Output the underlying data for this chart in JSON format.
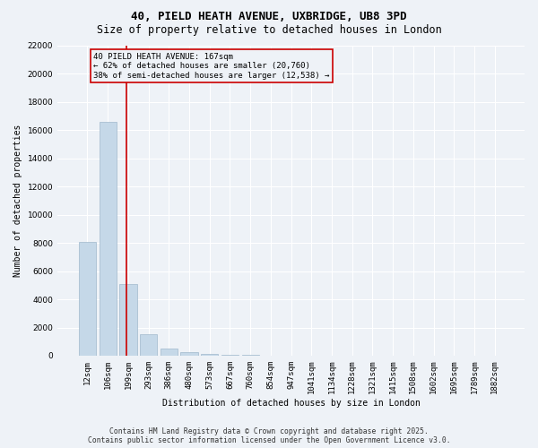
{
  "title_line1": "40, PIELD HEATH AVENUE, UXBRIDGE, UB8 3PD",
  "title_line2": "Size of property relative to detached houses in London",
  "xlabel": "Distribution of detached houses by size in London",
  "ylabel": "Number of detached properties",
  "categories": [
    "12sqm",
    "106sqm",
    "199sqm",
    "293sqm",
    "386sqm",
    "480sqm",
    "573sqm",
    "667sqm",
    "760sqm",
    "854sqm",
    "947sqm",
    "1041sqm",
    "1134sqm",
    "1228sqm",
    "1321sqm",
    "1415sqm",
    "1508sqm",
    "1602sqm",
    "1695sqm",
    "1789sqm",
    "1882sqm"
  ],
  "values": [
    8100,
    16600,
    5100,
    1500,
    500,
    280,
    130,
    70,
    30,
    0,
    0,
    0,
    0,
    0,
    0,
    0,
    0,
    0,
    0,
    0,
    0
  ],
  "bar_color": "#c5d8e8",
  "bar_edge_color": "#a0b8cc",
  "vline_color": "#cc0000",
  "annotation_text": "40 PIELD HEATH AVENUE: 167sqm\n← 62% of detached houses are smaller (20,760)\n38% of semi-detached houses are larger (12,538) →",
  "box_color": "#cc0000",
  "ylim": [
    0,
    22000
  ],
  "yticks": [
    0,
    2000,
    4000,
    6000,
    8000,
    10000,
    12000,
    14000,
    16000,
    18000,
    20000,
    22000
  ],
  "background_color": "#eef2f7",
  "grid_color": "#ffffff",
  "footer_line1": "Contains HM Land Registry data © Crown copyright and database right 2025.",
  "footer_line2": "Contains public sector information licensed under the Open Government Licence v3.0.",
  "title_fontsize": 9,
  "subtitle_fontsize": 8.5,
  "axis_label_fontsize": 7,
  "tick_fontsize": 6.5,
  "annotation_fontsize": 6.5,
  "footer_fontsize": 5.8,
  "vline_bar_index": 1.925
}
